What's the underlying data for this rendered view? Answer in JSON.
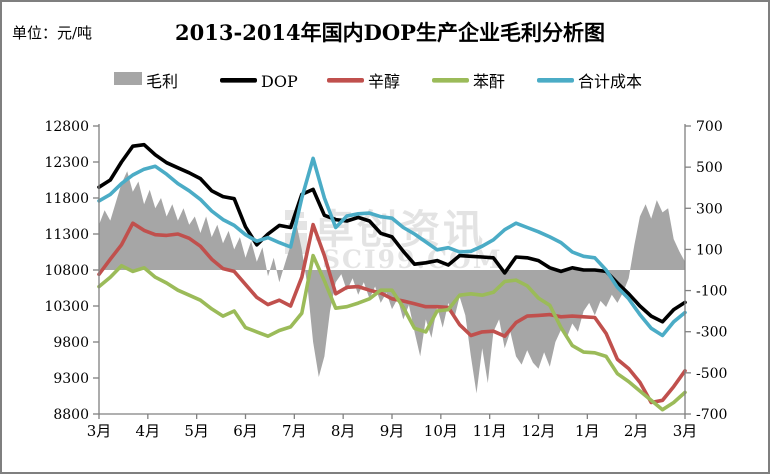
{
  "header": {
    "unit_label": "单位：元/吨",
    "title": "2013-2014年国内DOP生产企业毛利分析图"
  },
  "watermark": {
    "cn": "卓创资讯",
    "en": "SCI99.COM"
  },
  "chart_data": {
    "type": "line+area",
    "title": "2013-2014年国内DOP生产企业毛利分析图",
    "unit": "元/吨",
    "x_axis": {
      "labels": [
        "3月",
        "4月",
        "5月",
        "6月",
        "7月",
        "8月",
        "9月",
        "10月",
        "11月",
        "12月",
        "1月",
        "2月",
        "3月"
      ]
    },
    "y_left": {
      "min": 8800,
      "max": 12800,
      "step": 500,
      "ticks": [
        12800,
        12300,
        11800,
        11300,
        10800,
        10300,
        9800,
        9300,
        8800
      ]
    },
    "y_right": {
      "min": -700,
      "max": 700,
      "step": 200,
      "ticks": [
        700,
        500,
        300,
        100,
        -100,
        -300,
        -500,
        -700
      ]
    },
    "legend": [
      {
        "label": "毛利",
        "type": "area",
        "color": "#a6a6a6"
      },
      {
        "label": "DOP",
        "type": "line",
        "color": "#000000"
      },
      {
        "label": "辛醇",
        "type": "line",
        "color": "#c0504d"
      },
      {
        "label": "苯酐",
        "type": "line",
        "color": "#9bbb59"
      },
      {
        "label": "合计成本",
        "type": "line",
        "color": "#4bacc6"
      }
    ],
    "area_series": {
      "name": "毛利",
      "axis": "right",
      "color": "#a6a6a6",
      "values": [
        220,
        290,
        240,
        330,
        420,
        480,
        380,
        430,
        320,
        390,
        300,
        350,
        260,
        320,
        240,
        300,
        220,
        260,
        180,
        260,
        160,
        220,
        130,
        190,
        100,
        160,
        60,
        140,
        40,
        110,
        -30,
        60,
        -60,
        30,
        120,
        230,
        100,
        -80,
        -350,
        -520,
        -420,
        -200,
        -60,
        -20,
        -100,
        -40,
        -120,
        -60,
        -140,
        -80,
        -160,
        -110,
        -190,
        -140,
        -240,
        -170,
        -300,
        -420,
        -240,
        -330,
        -180,
        -280,
        -160,
        -240,
        -130,
        -220,
        -420,
        -600,
        -380,
        -550,
        -300,
        -240,
        -380,
        -300,
        -420,
        -460,
        -390,
        -450,
        -480,
        -400,
        -470,
        -350,
        -290,
        -330,
        -260,
        -300,
        -200,
        -160,
        -220,
        -150,
        -180,
        -120,
        -160,
        -110,
        -40,
        120,
        260,
        320,
        250,
        340,
        280,
        300,
        150,
        90,
        40
      ]
    },
    "line_series": [
      {
        "name": "DOP",
        "axis": "left",
        "color": "#000000",
        "values": [
          11950,
          12050,
          12300,
          12520,
          12540,
          12400,
          12290,
          12220,
          12150,
          12070,
          11900,
          11820,
          11790,
          11400,
          11150,
          11300,
          11420,
          11390,
          11850,
          11920,
          11560,
          11500,
          11480,
          11530,
          11480,
          11310,
          11260,
          11060,
          10880,
          10900,
          10930,
          10870,
          11000,
          10990,
          10980,
          10970,
          10760,
          10980,
          10970,
          10930,
          10830,
          10780,
          10830,
          10800,
          10800,
          10780,
          10620,
          10470,
          10300,
          10160,
          10080,
          10250,
          10350
        ]
      },
      {
        "name": "辛醇",
        "axis": "left",
        "color": "#c0504d",
        "values": [
          10740,
          10950,
          11150,
          11450,
          11350,
          11290,
          11280,
          11300,
          11240,
          11130,
          10950,
          10820,
          10780,
          10600,
          10420,
          10320,
          10380,
          10300,
          10700,
          11430,
          11000,
          10470,
          10560,
          10570,
          10520,
          10480,
          10400,
          10370,
          10330,
          10290,
          10290,
          10280,
          10040,
          9890,
          9940,
          9950,
          9880,
          10070,
          10160,
          10170,
          10180,
          10150,
          10160,
          10150,
          10140,
          9920,
          9560,
          9430,
          9240,
          8960,
          8990,
          9180,
          9400
        ]
      },
      {
        "name": "苯酐",
        "axis": "left",
        "color": "#9bbb59",
        "values": [
          10570,
          10700,
          10860,
          10780,
          10830,
          10700,
          10620,
          10520,
          10450,
          10380,
          10260,
          10160,
          10230,
          10000,
          9940,
          9880,
          9960,
          10010,
          10200,
          11000,
          10650,
          10270,
          10290,
          10340,
          10400,
          10520,
          10520,
          10280,
          9990,
          9940,
          10230,
          10250,
          10450,
          10470,
          10450,
          10490,
          10640,
          10660,
          10580,
          10410,
          10310,
          10000,
          9750,
          9660,
          9650,
          9600,
          9360,
          9250,
          9120,
          8990,
          8860,
          8960,
          9100
        ]
      },
      {
        "name": "合计成本",
        "axis": "left",
        "color": "#4bacc6",
        "values": [
          11760,
          11850,
          12000,
          12120,
          12200,
          12240,
          12130,
          12000,
          11900,
          11780,
          11620,
          11500,
          11420,
          11290,
          11200,
          11250,
          11180,
          11120,
          11800,
          12350,
          11800,
          11390,
          11550,
          11580,
          11590,
          11540,
          11520,
          11390,
          11300,
          11190,
          11080,
          11110,
          11050,
          11060,
          11130,
          11220,
          11360,
          11450,
          11390,
          11330,
          11260,
          11180,
          11050,
          10990,
          10970,
          10800,
          10560,
          10400,
          10180,
          9990,
          9890,
          10080,
          10210
        ]
      }
    ]
  }
}
